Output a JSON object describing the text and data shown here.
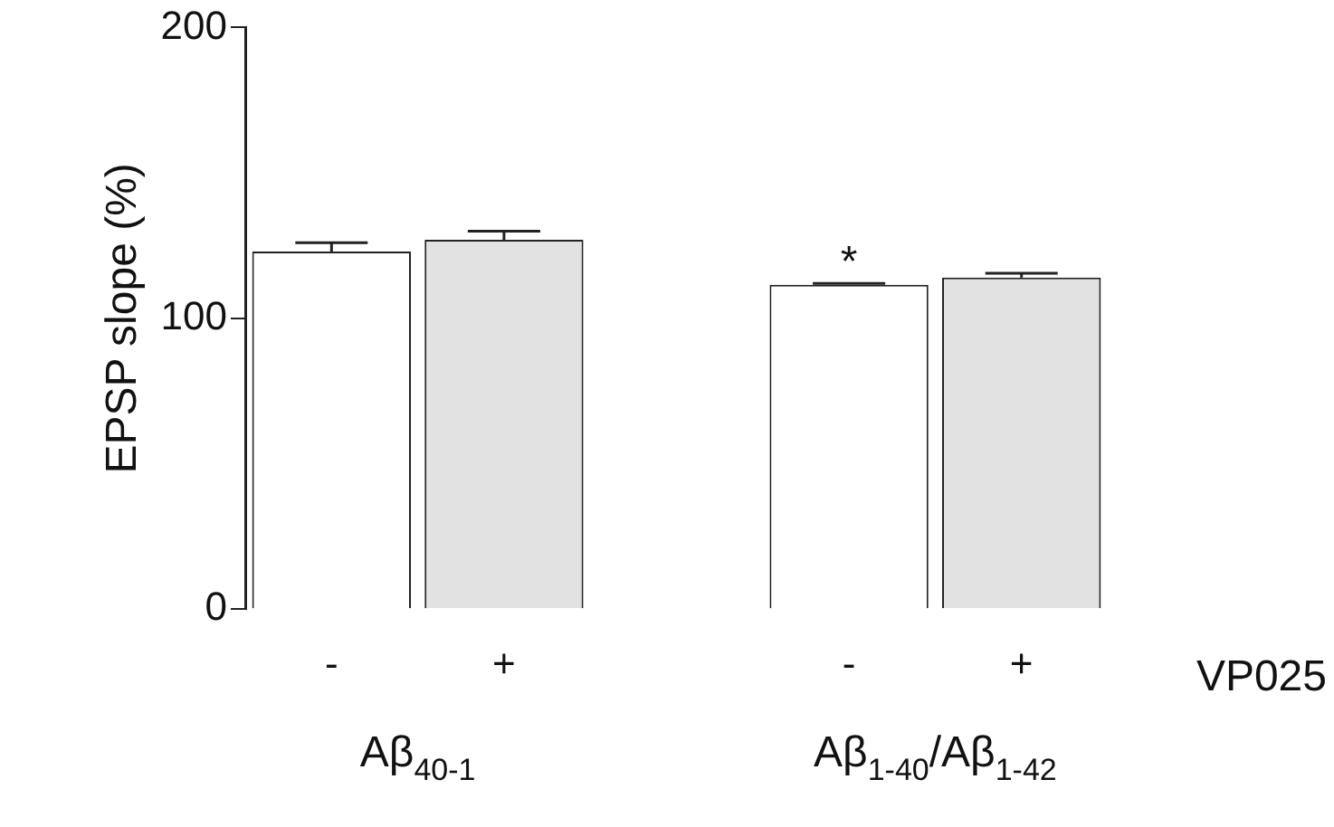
{
  "chart_data": {
    "type": "bar",
    "ylabel": "EPSP slope (%)",
    "categories": [
      "-",
      "+",
      null,
      "-",
      "+"
    ],
    "values": [
      123,
      127,
      null,
      111.5,
      114
    ],
    "errors": [
      3,
      3,
      null,
      0.5,
      1.5
    ],
    "colors": [
      "#ffffff",
      "#e2e2e2",
      null,
      "#ffffff",
      "#e2e2e2"
    ],
    "ylim": [
      0,
      200
    ],
    "yticks": [
      0,
      100,
      200
    ],
    "grid": false,
    "legend": false,
    "annotations": [
      "*",
      "VP025",
      "Aβ$_{40-1}$",
      "Aβ$_{1-40}$/Aβ$_{1-42}$"
    ]
  }
}
